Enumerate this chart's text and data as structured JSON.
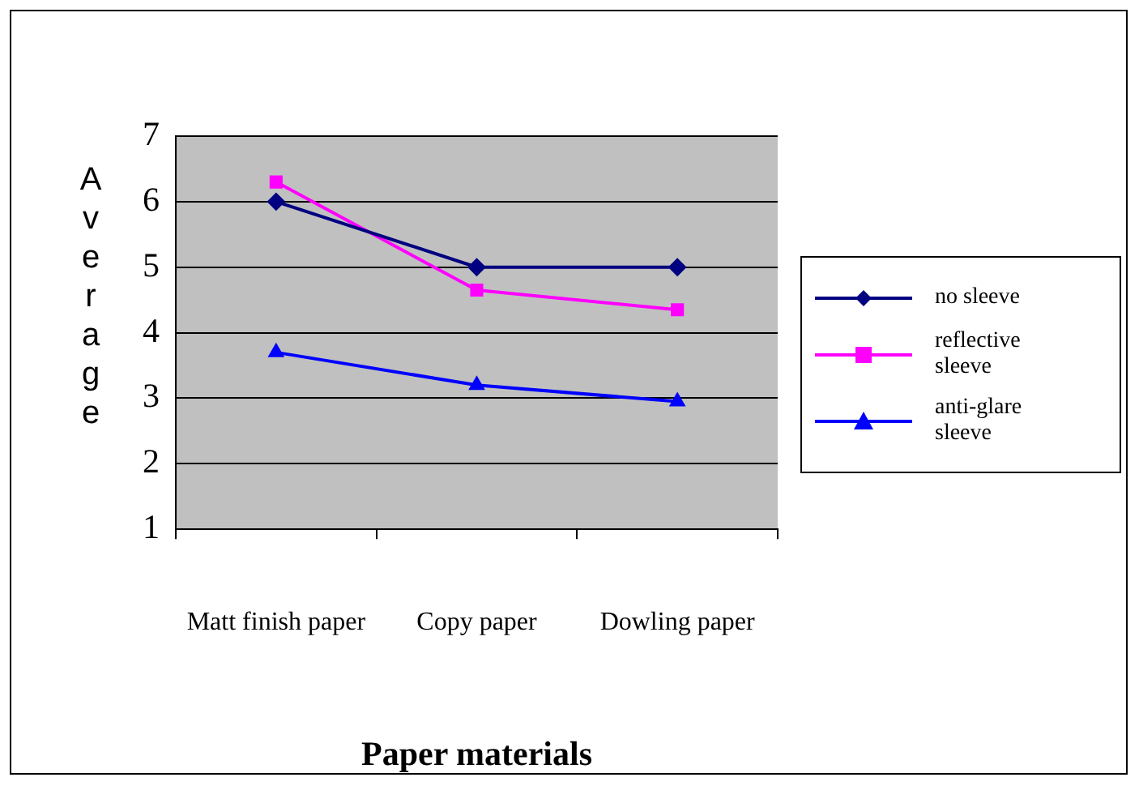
{
  "chart_data": {
    "type": "line",
    "xlabel": "Paper materials",
    "ylabel": "Average",
    "categories": [
      "Matt finish paper",
      "Copy paper",
      "Dowling paper"
    ],
    "series": [
      {
        "name": "no sleeve",
        "color": "#000080",
        "marker": "diamond",
        "values": [
          6.0,
          5.0,
          5.0
        ]
      },
      {
        "name": "reflective sleeve",
        "color": "#ff00ff",
        "marker": "square",
        "values": [
          6.3,
          4.65,
          4.35
        ]
      },
      {
        "name": "anti-glare sleeve",
        "color": "#0000ff",
        "marker": "triangle",
        "values": [
          3.7,
          3.2,
          2.95
        ]
      }
    ],
    "ylim": [
      1,
      7
    ],
    "yticks": [
      1,
      2,
      3,
      4,
      5,
      6,
      7
    ],
    "grid": "y",
    "legend": "right",
    "line_style": "solid"
  }
}
